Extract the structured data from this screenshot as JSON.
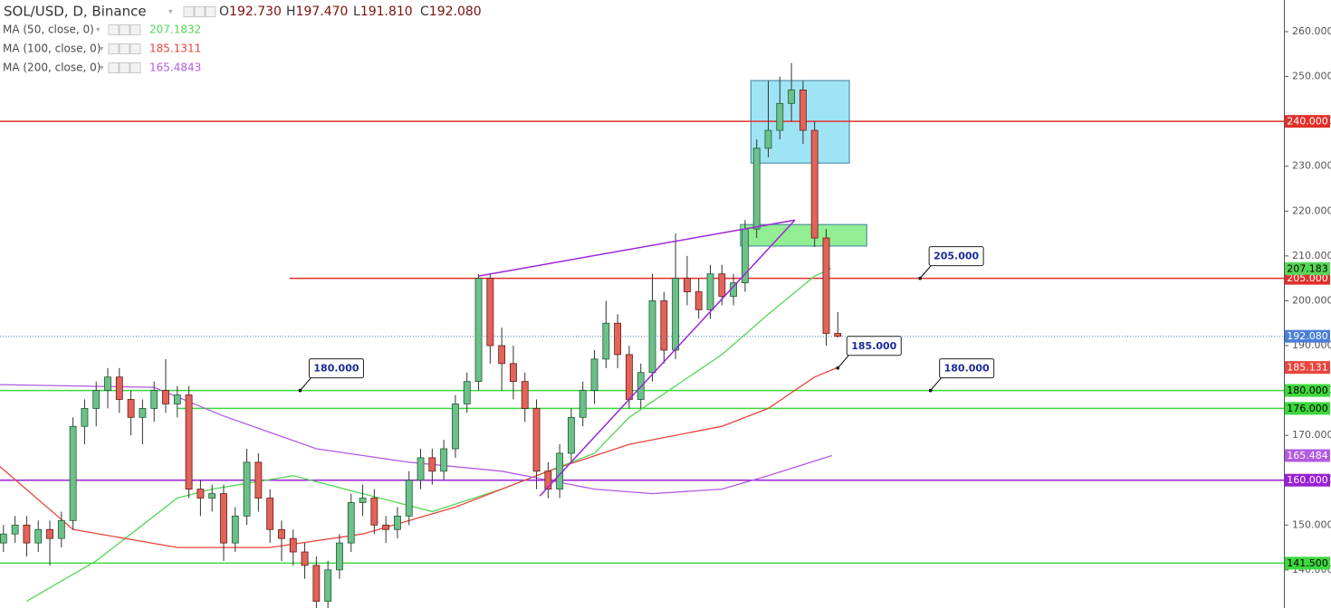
{
  "chart_data": {
    "type": "candlestick",
    "legend": {
      "symbol": "SOL/USD, D, Binance",
      "ohlc": [
        {
          "key": "O",
          "value": "192.730"
        },
        {
          "key": "H",
          "value": "197.470"
        },
        {
          "key": "L",
          "value": "191.810"
        },
        {
          "key": "C",
          "value": "192.080"
        }
      ]
    },
    "up_color": "#6cc18a",
    "down_color": "#e0645a",
    "candles": [
      [
        146,
        150,
        144,
        148
      ],
      [
        148,
        152,
        146,
        150
      ],
      [
        150,
        152,
        143,
        146
      ],
      [
        146,
        151,
        144,
        149
      ],
      [
        149,
        151,
        141,
        147
      ],
      [
        147,
        153,
        145,
        151
      ],
      [
        151,
        174,
        149,
        172
      ],
      [
        172,
        178,
        168,
        176
      ],
      [
        176,
        182,
        172,
        180
      ],
      [
        180,
        185,
        176,
        183
      ],
      [
        183,
        185,
        175,
        178
      ],
      [
        178,
        180,
        170,
        174
      ],
      [
        174,
        178,
        168,
        176
      ],
      [
        176,
        182,
        173,
        180
      ],
      [
        180,
        187,
        175,
        177
      ],
      [
        177,
        181,
        174,
        179
      ],
      [
        179,
        181,
        156,
        158
      ],
      [
        158,
        160,
        152,
        156
      ],
      [
        156,
        159,
        153,
        157
      ],
      [
        157,
        159,
        142,
        146
      ],
      [
        146,
        154,
        144,
        152
      ],
      [
        152,
        167,
        150,
        164
      ],
      [
        164,
        166,
        153,
        156
      ],
      [
        156,
        158,
        146,
        149
      ],
      [
        149,
        151,
        142,
        147
      ],
      [
        147,
        149,
        141,
        144
      ],
      [
        144,
        146,
        138,
        141
      ],
      [
        141,
        143,
        131,
        133
      ],
      [
        133,
        142,
        131,
        140
      ],
      [
        140,
        148,
        138,
        146
      ],
      [
        146,
        157,
        144,
        155
      ],
      [
        155,
        159,
        152,
        156
      ],
      [
        156,
        158,
        148,
        150
      ],
      [
        150,
        152,
        146,
        149
      ],
      [
        149,
        154,
        147,
        152
      ],
      [
        152,
        162,
        150,
        160
      ],
      [
        160,
        167,
        158,
        165
      ],
      [
        165,
        167,
        159,
        162
      ],
      [
        162,
        169,
        160,
        167
      ],
      [
        167,
        179,
        165,
        177
      ],
      [
        177,
        184,
        175,
        182
      ],
      [
        182,
        206,
        180,
        205
      ],
      [
        205,
        206,
        186,
        190
      ],
      [
        190,
        194,
        180,
        186
      ],
      [
        186,
        190,
        178,
        182
      ],
      [
        182,
        184,
        173,
        176
      ],
      [
        176,
        178,
        158,
        162
      ],
      [
        162,
        164,
        156,
        158
      ],
      [
        158,
        168,
        156,
        166
      ],
      [
        166,
        176,
        164,
        174
      ],
      [
        174,
        182,
        172,
        180
      ],
      [
        180,
        189,
        177,
        187
      ],
      [
        187,
        200,
        185,
        195
      ],
      [
        195,
        197,
        185,
        188
      ],
      [
        188,
        190,
        176,
        178
      ],
      [
        178,
        186,
        176,
        184
      ],
      [
        184,
        206,
        182,
        200
      ],
      [
        200,
        202,
        186,
        189
      ],
      [
        189,
        215,
        187,
        205
      ],
      [
        205,
        210,
        199,
        202
      ],
      [
        202,
        205,
        196,
        198
      ],
      [
        198,
        208,
        196,
        206
      ],
      [
        206,
        208,
        199,
        201
      ],
      [
        201,
        206,
        199,
        204
      ],
      [
        204,
        218,
        202,
        216
      ],
      [
        216,
        236,
        214,
        234
      ],
      [
        234,
        249,
        232,
        238
      ],
      [
        238,
        250,
        236,
        244
      ],
      [
        244,
        253,
        240,
        247
      ],
      [
        247,
        249,
        235,
        238
      ],
      [
        238,
        240,
        212,
        214
      ],
      [
        214,
        216,
        190,
        192.73
      ],
      [
        192.73,
        197.47,
        191.81,
        192.08
      ]
    ],
    "ma": [
      {
        "name": "MA (50, close, 0)",
        "color": "#55d655",
        "legend_label": "207.1832",
        "axis_label": "207.183",
        "x": [
          2,
          8,
          12,
          15,
          18,
          25,
          31,
          37,
          43,
          47,
          51,
          54,
          58,
          62,
          66,
          70,
          71.4
        ],
        "values": [
          133,
          142,
          150,
          156,
          158,
          161,
          157,
          153,
          158,
          162,
          166,
          174,
          181,
          188,
          197,
          205.5,
          207.1832
        ]
      },
      {
        "name": "MA (100, close, 0)",
        "color": "#e8453c",
        "legend_label": "185.1311",
        "axis_label": "185.131",
        "x": [
          -0.3,
          6,
          15,
          23,
          31,
          39,
          47,
          54,
          62,
          66,
          70,
          72
        ],
        "values": [
          163,
          149,
          145,
          145,
          148,
          154,
          162,
          168,
          172,
          176,
          183,
          185.1311
        ]
      },
      {
        "name": "MA (200, close, 0)",
        "color": "#b25ae0",
        "legend_label": "165.4843",
        "axis_label": "165.484",
        "x": [
          -0.3,
          13,
          19,
          27,
          35,
          43,
          51,
          56,
          62,
          66,
          71.5
        ],
        "values": [
          181.3,
          180.7,
          174.3,
          167,
          164,
          162,
          158,
          157,
          158,
          161,
          165.4843
        ]
      }
    ],
    "levels": [
      {
        "value": 240,
        "label": "240.000",
        "color": "#e0302b"
      },
      {
        "value": 205,
        "label": "205.000",
        "color": "#e0302b",
        "start": 24.7
      },
      {
        "value": 180,
        "label": "180.000",
        "color": "#3cd83c"
      },
      {
        "value": 176,
        "label": "176.000",
        "color": "#3cd83c",
        "start": 15
      },
      {
        "value": 160,
        "label": "160.000",
        "color": "#9b1fd6"
      },
      {
        "value": 141.5,
        "label": "141.500",
        "color": "#3cd83c"
      }
    ],
    "last_price": {
      "value": 192.08,
      "label": "192.080",
      "color": "#4a7fd6"
    },
    "annotations": [
      {
        "text": "205.000",
        "x": 79.1,
        "y": 205
      },
      {
        "text": "185.000",
        "x": 72.0,
        "y": 185
      },
      {
        "text": "180.000",
        "x": 25.6,
        "y": 180
      },
      {
        "text": "180.000",
        "x": 80.0,
        "y": 180
      }
    ],
    "trendlines": [
      {
        "x": [
          41,
          68.3
        ],
        "y": [
          205.5,
          218
        ],
        "color": "#9c27d6"
      },
      {
        "x": [
          46.3,
          68.3
        ],
        "y": [
          156.5,
          218
        ],
        "color": "#9c27d6"
      }
    ],
    "zones": [
      {
        "x": [
          64.5,
          73
        ],
        "y": [
          249.1,
          230.7
        ],
        "color": "#7fdbf0"
      },
      {
        "x": [
          63.6,
          74.5
        ],
        "y": [
          217,
          212.2
        ],
        "color": "#6ee86e"
      }
    ],
    "xlim": [
      -0.3,
      110.5
    ],
    "ylim": [
      131.5,
      267.06
    ],
    "yticks": [
      {
        "value": 140,
        "label": "140.000"
      },
      {
        "value": 150,
        "label": "150.000"
      },
      {
        "value": 160,
        "label": "160.000"
      },
      {
        "value": 170,
        "label": "170.000"
      },
      {
        "value": 180,
        "label": "180.000"
      },
      {
        "value": 190,
        "label": "190.000"
      },
      {
        "value": 200,
        "label": "200.000"
      },
      {
        "value": 210,
        "label": "210.000"
      },
      {
        "value": 220,
        "label": "220.000"
      },
      {
        "value": 230,
        "label": "230.000"
      },
      {
        "value": 240,
        "label": "240.000"
      },
      {
        "value": 250,
        "label": "250.000"
      },
      {
        "value": 260,
        "label": "260.000"
      }
    ]
  }
}
